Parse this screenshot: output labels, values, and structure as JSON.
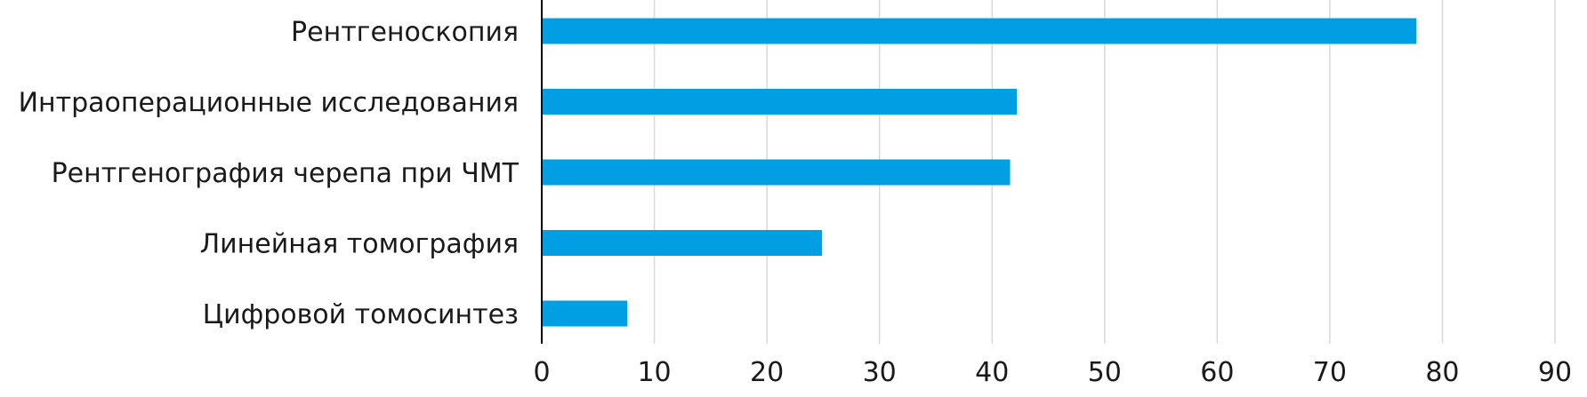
{
  "chart_data": {
    "type": "bar",
    "orientation": "horizontal",
    "categories": [
      "Рентгеноскопия",
      "Интраоперационные исследования",
      "Рентгенография черепа при ЧМТ",
      "Линейная томография",
      "Цифровой томосинтез"
    ],
    "values": [
      77.7,
      42.2,
      41.6,
      24.9,
      7.6
    ],
    "xlim": [
      0,
      90
    ],
    "xticks": [
      "0",
      "10",
      "20",
      "30",
      "40",
      "50",
      "60",
      "70",
      "80",
      "90"
    ],
    "grid": true,
    "legend": "none",
    "bar_color": "#009FE3",
    "grid_color": "#D9D9D9",
    "axis_color": "#000000"
  }
}
